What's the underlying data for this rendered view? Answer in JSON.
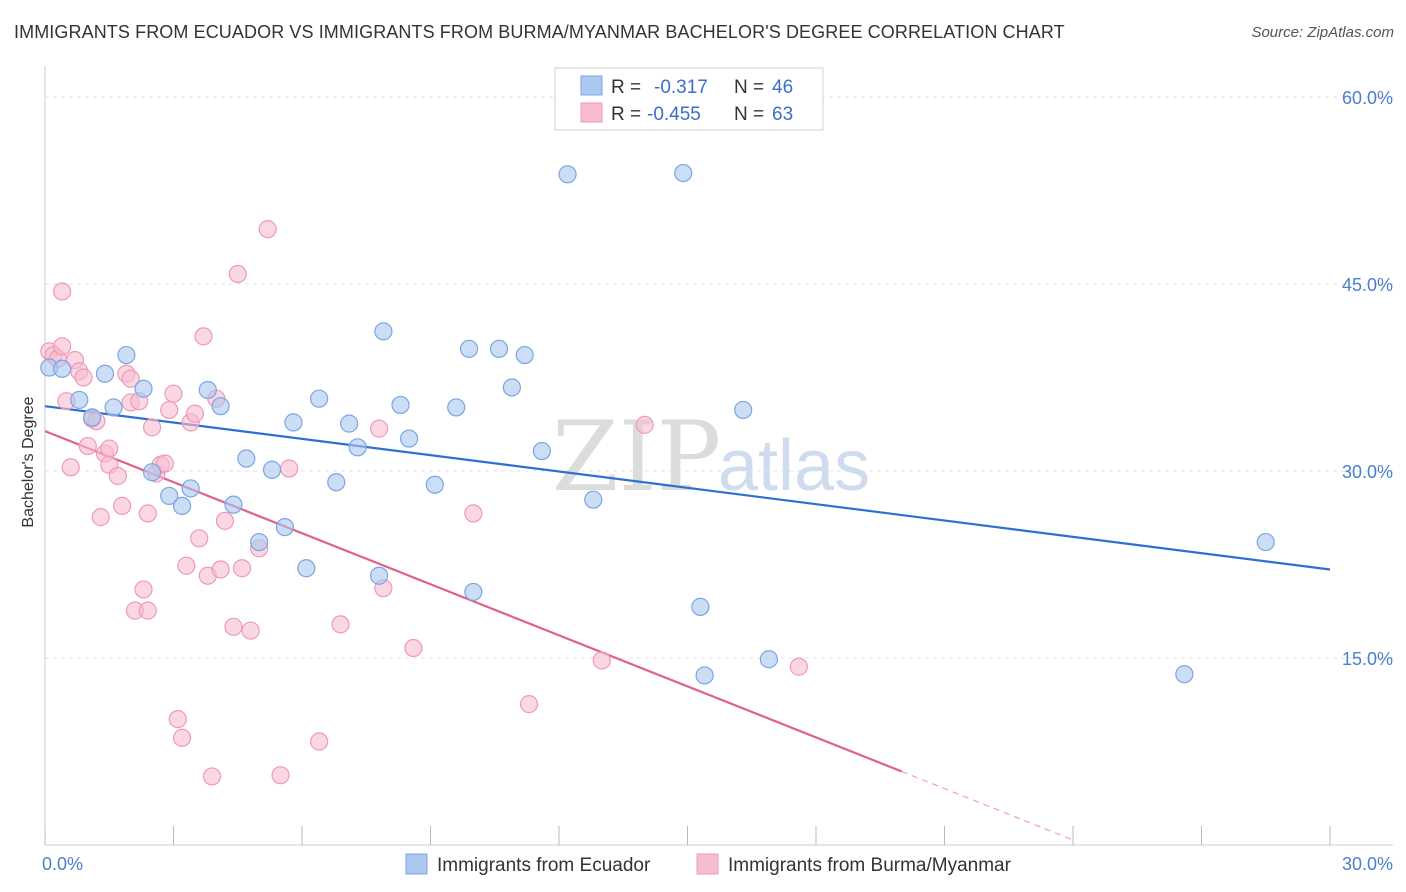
{
  "header": {
    "title": "IMMIGRANTS FROM ECUADOR VS IMMIGRANTS FROM BURMA/MYANMAR BACHELOR'S DEGREE CORRELATION CHART",
    "source": "Source: ZipAtlas.com"
  },
  "watermark": {
    "zip": "ZIP",
    "atlas": "atlas"
  },
  "legend_box": {
    "rows": [
      {
        "r_label": "R =",
        "r_value": "-0.317",
        "n_label": "N =",
        "n_value": "46"
      },
      {
        "r_label": "R =",
        "r_value": "-0.455",
        "n_label": "N =",
        "n_value": "63"
      }
    ]
  },
  "chart_data": {
    "type": "scatter",
    "title": "IMMIGRANTS FROM ECUADOR VS IMMIGRANTS FROM BURMA/MYANMAR BACHELOR'S DEGREE CORRELATION CHART",
    "xlabel": "",
    "ylabel": "Bachelor's Degree",
    "xlim": [
      0,
      30
    ],
    "ylim": [
      0,
      60
    ],
    "x_tick_labels": [
      "0.0%",
      "30.0%"
    ],
    "y_ticks": [
      15,
      30,
      45,
      60
    ],
    "y_tick_labels": [
      "15.0%",
      "30.0%",
      "45.0%",
      "60.0%"
    ],
    "grid": true,
    "legend_position": "bottom",
    "colors": {
      "ecuador_fill": "#aac8f0",
      "ecuador_stroke": "#7aa6e0",
      "ecuador_line": "#2f6fd0",
      "burma_fill": "#f7bcd0",
      "burma_stroke": "#ee9ab8",
      "burma_line": "#e0608e"
    },
    "series": [
      {
        "name": "Immigrants from Ecuador",
        "r": -0.317,
        "n": 46,
        "trend": {
          "x0": 0.0,
          "y0": 35.2,
          "x1": 30.0,
          "y1": 22.1
        },
        "points": [
          [
            0.1,
            38.3
          ],
          [
            0.4,
            38.2
          ],
          [
            0.8,
            35.7
          ],
          [
            1.1,
            34.3
          ],
          [
            1.4,
            37.8
          ],
          [
            1.6,
            35.1
          ],
          [
            1.9,
            39.3
          ],
          [
            2.3,
            36.6
          ],
          [
            2.5,
            29.9
          ],
          [
            2.9,
            28.0
          ],
          [
            3.2,
            27.2
          ],
          [
            3.4,
            28.6
          ],
          [
            3.8,
            36.5
          ],
          [
            4.1,
            35.2
          ],
          [
            4.4,
            27.3
          ],
          [
            4.7,
            31.0
          ],
          [
            5.0,
            24.3
          ],
          [
            5.3,
            30.1
          ],
          [
            5.6,
            25.5
          ],
          [
            5.8,
            33.9
          ],
          [
            6.1,
            22.2
          ],
          [
            6.4,
            35.8
          ],
          [
            6.8,
            29.1
          ],
          [
            7.1,
            33.8
          ],
          [
            7.3,
            31.9
          ],
          [
            7.8,
            21.6
          ],
          [
            7.9,
            41.2
          ],
          [
            8.3,
            35.3
          ],
          [
            8.5,
            32.6
          ],
          [
            9.1,
            28.9
          ],
          [
            9.6,
            35.1
          ],
          [
            9.9,
            39.8
          ],
          [
            10.0,
            20.3
          ],
          [
            10.6,
            39.8
          ],
          [
            10.9,
            36.7
          ],
          [
            11.2,
            39.3
          ],
          [
            11.6,
            31.6
          ],
          [
            12.2,
            53.8
          ],
          [
            12.8,
            27.7
          ],
          [
            14.9,
            53.9
          ],
          [
            15.3,
            19.1
          ],
          [
            15.4,
            13.6
          ],
          [
            16.3,
            34.9
          ],
          [
            16.9,
            14.9
          ],
          [
            26.6,
            13.7
          ],
          [
            28.5,
            24.3
          ]
        ]
      },
      {
        "name": "Immigrants from Burma/Myanmar",
        "r": -0.455,
        "n": 63,
        "trend": {
          "x0": 0.0,
          "y0": 33.2,
          "x1": 20.0,
          "y1": 5.9
        },
        "trend_dashed_to": {
          "x": 24.0,
          "y": 0.4
        },
        "points": [
          [
            0.1,
            39.6
          ],
          [
            0.2,
            39.3
          ],
          [
            0.3,
            39.0
          ],
          [
            0.4,
            40.0
          ],
          [
            0.4,
            44.4
          ],
          [
            0.5,
            35.6
          ],
          [
            0.6,
            30.3
          ],
          [
            0.7,
            38.9
          ],
          [
            0.8,
            38.0
          ],
          [
            0.9,
            37.5
          ],
          [
            1.0,
            32.0
          ],
          [
            1.1,
            34.2
          ],
          [
            1.3,
            26.3
          ],
          [
            1.4,
            31.4
          ],
          [
            1.5,
            31.8
          ],
          [
            1.5,
            30.5
          ],
          [
            1.7,
            29.6
          ],
          [
            1.8,
            27.2
          ],
          [
            1.9,
            37.8
          ],
          [
            2.0,
            37.4
          ],
          [
            2.0,
            35.5
          ],
          [
            2.1,
            18.8
          ],
          [
            2.2,
            35.6
          ],
          [
            2.3,
            20.5
          ],
          [
            2.4,
            26.6
          ],
          [
            2.4,
            18.8
          ],
          [
            2.5,
            33.5
          ],
          [
            2.6,
            29.8
          ],
          [
            2.7,
            30.5
          ],
          [
            2.8,
            30.6
          ],
          [
            2.9,
            34.9
          ],
          [
            3.0,
            36.2
          ],
          [
            3.1,
            10.1
          ],
          [
            3.2,
            8.6
          ],
          [
            3.3,
            22.4
          ],
          [
            3.4,
            33.9
          ],
          [
            3.5,
            34.6
          ],
          [
            3.6,
            24.6
          ],
          [
            3.7,
            40.8
          ],
          [
            3.8,
            21.6
          ],
          [
            3.9,
            5.5
          ],
          [
            4.0,
            35.8
          ],
          [
            4.1,
            22.1
          ],
          [
            4.2,
            26.0
          ],
          [
            4.4,
            17.5
          ],
          [
            4.5,
            45.8
          ],
          [
            4.6,
            22.2
          ],
          [
            4.8,
            17.2
          ],
          [
            5.0,
            23.8
          ],
          [
            5.2,
            49.4
          ],
          [
            5.5,
            5.6
          ],
          [
            5.7,
            30.2
          ],
          [
            6.4,
            8.3
          ],
          [
            6.9,
            17.7
          ],
          [
            7.8,
            33.4
          ],
          [
            7.9,
            20.6
          ],
          [
            8.6,
            15.8
          ],
          [
            10.0,
            26.6
          ],
          [
            11.3,
            11.3
          ],
          [
            13.0,
            14.8
          ],
          [
            14.0,
            33.7
          ],
          [
            17.6,
            14.3
          ],
          [
            1.2,
            34.0
          ]
        ]
      }
    ]
  },
  "bottom_legend": {
    "items": [
      {
        "label": "Immigrants from Ecuador"
      },
      {
        "label": "Immigrants from Burma/Myanmar"
      }
    ]
  }
}
